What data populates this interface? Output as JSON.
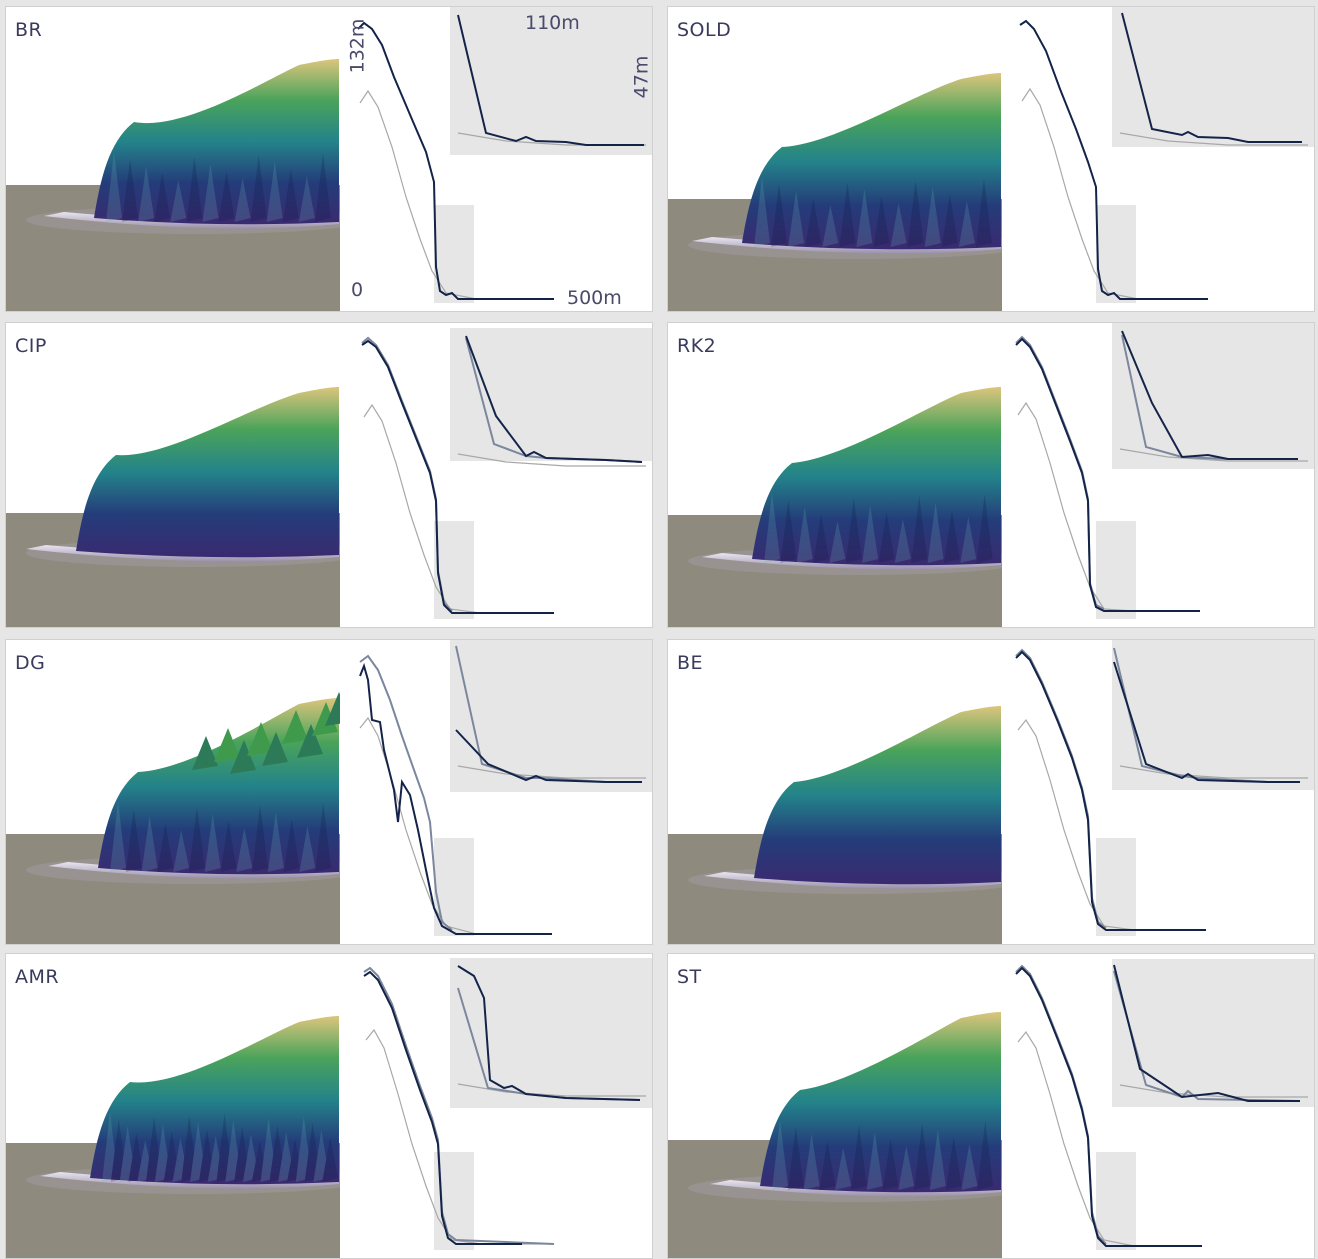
{
  "panels": [
    {
      "label": "BR"
    },
    {
      "label": "SOLD"
    },
    {
      "label": "CIP"
    },
    {
      "label": "RK2"
    },
    {
      "label": "DG"
    },
    {
      "label": "BE"
    },
    {
      "label": "AMR"
    },
    {
      "label": "ST"
    }
  ],
  "annotations": {
    "height_full": "132m",
    "width_inset": "110m",
    "height_inset": "47m",
    "origin": "0",
    "width_full": "500m"
  },
  "colors": {
    "ground": "#8f8a7e",
    "profile_main": "#142449",
    "profile_ref": "#7c879d",
    "profile_initial": "#a8a8a8",
    "inset_bg": "#e6e6e6",
    "terrain_low": "#2b1f5e",
    "terrain_mid": "#23838a",
    "terrain_high": "#dcc57d"
  }
}
